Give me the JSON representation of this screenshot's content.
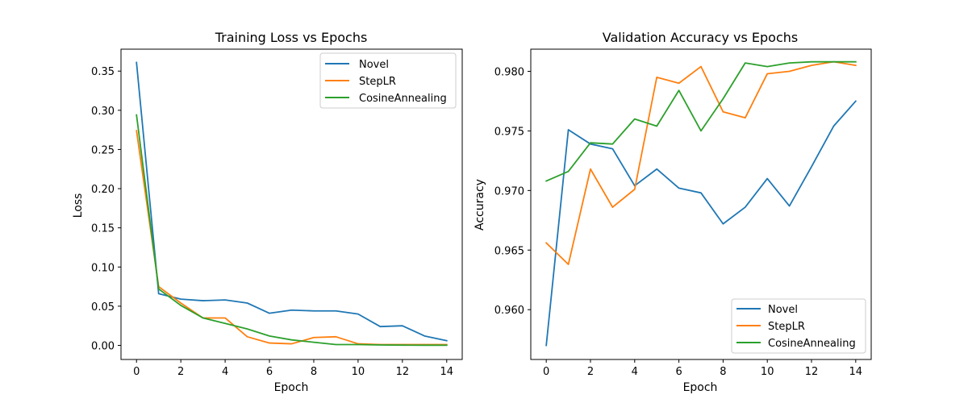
{
  "chart_data": [
    {
      "type": "line",
      "title": "Training Loss vs Epochs",
      "xlabel": "Epoch",
      "ylabel": "Loss",
      "x": [
        0,
        1,
        2,
        3,
        4,
        5,
        6,
        7,
        8,
        9,
        10,
        11,
        12,
        13,
        14
      ],
      "xlim": [
        -0.7,
        14.7
      ],
      "ylim": [
        -0.018,
        0.378
      ],
      "xticks": [
        0,
        2,
        4,
        6,
        8,
        10,
        12,
        14
      ],
      "xtick_labels": [
        "0",
        "2",
        "4",
        "6",
        "8",
        "10",
        "12",
        "14"
      ],
      "yticks": [
        0.0,
        0.05,
        0.1,
        0.15,
        0.2,
        0.25,
        0.3,
        0.35
      ],
      "ytick_labels": [
        "0.00",
        "0.05",
        "0.10",
        "0.15",
        "0.20",
        "0.25",
        "0.30",
        "0.35"
      ],
      "legend_position": "upper right",
      "series": [
        {
          "name": "Novel",
          "color": "#1f77b4",
          "values": [
            0.361,
            0.066,
            0.059,
            0.057,
            0.058,
            0.054,
            0.041,
            0.045,
            0.044,
            0.044,
            0.04,
            0.024,
            0.025,
            0.012,
            0.006
          ]
        },
        {
          "name": "StepLR",
          "color": "#ff7f0e",
          "values": [
            0.274,
            0.075,
            0.054,
            0.035,
            0.035,
            0.011,
            0.003,
            0.002,
            0.01,
            0.011,
            0.002,
            0.001,
            0.001,
            0.001,
            0.001
          ]
        },
        {
          "name": "CosineAnnealing",
          "color": "#2ca02c",
          "values": [
            0.294,
            0.072,
            0.051,
            0.035,
            0.028,
            0.021,
            0.012,
            0.007,
            0.004,
            0.001,
            0.001,
            0.0005,
            0.0003,
            0.0002,
            0.0002
          ]
        }
      ]
    },
    {
      "type": "line",
      "title": "Validation Accuracy vs Epochs",
      "xlabel": "Epoch",
      "ylabel": "Accuracy",
      "x": [
        0,
        1,
        2,
        3,
        4,
        5,
        6,
        7,
        8,
        9,
        10,
        11,
        12,
        13,
        14
      ],
      "xlim": [
        -0.7,
        14.7
      ],
      "ylim": [
        0.95582,
        0.98186
      ],
      "xticks": [
        0,
        2,
        4,
        6,
        8,
        10,
        12,
        14
      ],
      "xtick_labels": [
        "0",
        "2",
        "4",
        "6",
        "8",
        "10",
        "12",
        "14"
      ],
      "yticks": [
        0.96,
        0.965,
        0.97,
        0.975,
        0.98
      ],
      "ytick_labels": [
        "0.960",
        "0.965",
        "0.970",
        "0.975",
        "0.980"
      ],
      "legend_position": "lower right",
      "series": [
        {
          "name": "Novel",
          "color": "#1f77b4",
          "values": [
            0.957,
            0.9751,
            0.9739,
            0.9735,
            0.9704,
            0.9718,
            0.9702,
            0.9698,
            0.9672,
            0.9686,
            0.971,
            0.9687,
            0.972,
            0.9754,
            0.9775
          ]
        },
        {
          "name": "StepLR",
          "color": "#ff7f0e",
          "values": [
            0.9656,
            0.9638,
            0.9718,
            0.9686,
            0.9701,
            0.9795,
            0.979,
            0.9804,
            0.9766,
            0.9761,
            0.9798,
            0.98,
            0.9805,
            0.9808,
            0.9805
          ]
        },
        {
          "name": "CosineAnnealing",
          "color": "#2ca02c",
          "values": [
            0.9708,
            0.9716,
            0.974,
            0.9739,
            0.976,
            0.9754,
            0.9784,
            0.975,
            0.9777,
            0.9807,
            0.9804,
            0.9807,
            0.9808,
            0.9808,
            0.9808
          ]
        }
      ]
    }
  ]
}
